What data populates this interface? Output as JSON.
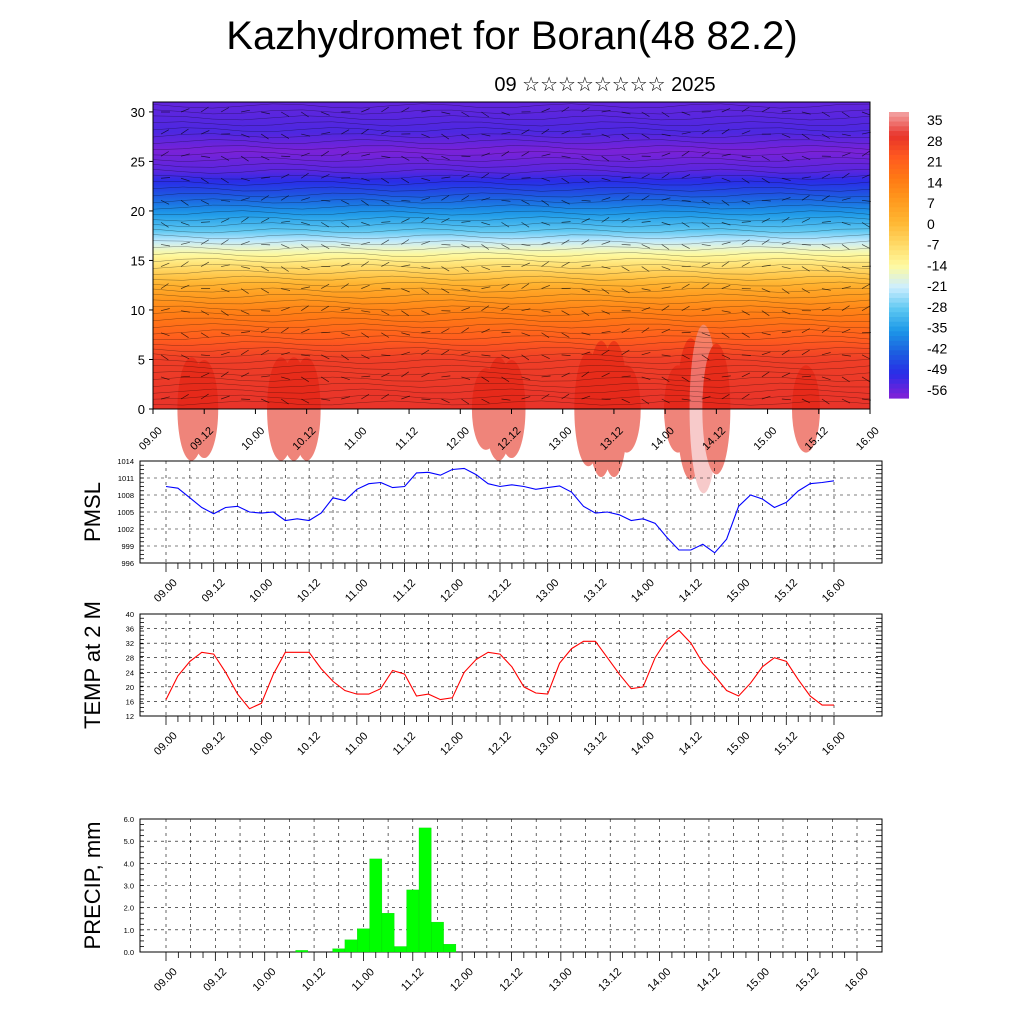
{
  "header": {
    "title": "Kazhydromet for Boran(48 82.2)",
    "subtitle": "09 ☆☆☆☆☆☆☆☆ 2025"
  },
  "time_ticks": [
    "09.00",
    "09.12",
    "10.00",
    "10.12",
    "11.00",
    "11.12",
    "12.00",
    "12.12",
    "13.00",
    "13.12",
    "14.00",
    "14.12",
    "15.00",
    "15.12",
    "16.00"
  ],
  "chart_data": [
    {
      "type": "heatmap",
      "name": "cross-section",
      "ylabel": "",
      "ylim": [
        0,
        31
      ],
      "y_ticks": [
        0,
        5,
        10,
        15,
        20,
        25,
        30
      ],
      "colorbar_labels": [
        "35",
        "28",
        "21",
        "14",
        "7",
        "0",
        "-7",
        "-14",
        "-21",
        "-28",
        "-35",
        "-42",
        "-49",
        "-56"
      ],
      "colorbar_colors": [
        "#f29b9b",
        "#e8332a",
        "#ff5a1f",
        "#ff7a14",
        "#ff9a1e",
        "#ffb733",
        "#ffd966",
        "#fffaa0",
        "#cdeeff",
        "#5ec8f2",
        "#1c98e8",
        "#1c5fe0",
        "#2a2ce8",
        "#7a22d8"
      ],
      "level_profile": [
        {
          "z": 0,
          "t": 28
        },
        {
          "z": 5,
          "t": 26
        },
        {
          "z": 8,
          "t": 18
        },
        {
          "z": 10,
          "t": 12
        },
        {
          "z": 12,
          "t": 4
        },
        {
          "z": 14,
          "t": -6
        },
        {
          "z": 16,
          "t": -16
        },
        {
          "z": 18,
          "t": -28
        },
        {
          "z": 20,
          "t": -36
        },
        {
          "z": 22,
          "t": -45
        },
        {
          "z": 24,
          "t": -53
        },
        {
          "z": 26,
          "t": -56
        },
        {
          "z": 28,
          "t": -52
        },
        {
          "z": 31,
          "t": -54
        }
      ]
    },
    {
      "type": "line",
      "name": "PMSL",
      "ylabel": "PMSL",
      "ylim": [
        996,
        1014
      ],
      "y_ticks": [
        996,
        999,
        1002,
        1005,
        1008,
        1011,
        1014
      ],
      "color": "#0000ff",
      "values": [
        1009.5,
        1009.2,
        1007.5,
        1005.8,
        1004.7,
        1005.8,
        1006,
        1005,
        1004.8,
        1005,
        1003.5,
        1003.8,
        1003.5,
        1004.8,
        1007.5,
        1007,
        1009,
        1010,
        1010.2,
        1009.3,
        1009.5,
        1011.9,
        1012,
        1011.5,
        1012.5,
        1012.7,
        1011.6,
        1010,
        1009.5,
        1009.8,
        1009.5,
        1009,
        1009.3,
        1009.6,
        1008.5,
        1006,
        1004.8,
        1005,
        1004.5,
        1003.5,
        1003.8,
        1003,
        1000.5,
        998.3,
        998.3,
        999.3,
        997.8,
        1000.2,
        1006,
        1008,
        1007.3,
        1005.8,
        1006.7,
        1008.7,
        1010,
        1010.2,
        1010.5
      ]
    },
    {
      "type": "line",
      "name": "TEMP at 2 M",
      "ylabel": "TEMP at 2 M",
      "ylim": [
        12,
        40
      ],
      "y_ticks": [
        12,
        16,
        20,
        24,
        28,
        32,
        36,
        40
      ],
      "color": "#ff0000",
      "values": [
        16.5,
        23,
        27,
        29.5,
        29,
        24,
        18,
        14,
        15.5,
        23.5,
        29.5,
        29.5,
        29.5,
        25,
        21.5,
        19,
        18,
        18,
        19.5,
        24.5,
        23.5,
        17.5,
        18,
        16.5,
        17,
        24,
        27.5,
        29.5,
        29,
        25.5,
        20,
        18.3,
        18,
        26.5,
        30.5,
        32.5,
        32.5,
        28,
        23.5,
        19.5,
        20,
        28,
        33,
        35.5,
        32,
        26.5,
        23,
        19,
        17.5,
        21,
        25.5,
        28,
        27,
        22,
        17.5,
        15,
        15
      ]
    },
    {
      "type": "bar",
      "name": "PRECIP",
      "ylabel": "PRECIP, mm",
      "ylim": [
        0,
        6
      ],
      "y_ticks": [
        0.0,
        1.0,
        2.0,
        3.0,
        4.0,
        5.0,
        6.0
      ],
      "y_tick_labels": [
        "0.0",
        "1.0",
        "2.0",
        "3.0",
        "4.0",
        "5.0",
        "6.0"
      ],
      "color": "#00ff00",
      "values": [
        0,
        0,
        0,
        0,
        0,
        0,
        0,
        0,
        0,
        0,
        0,
        0.07,
        0,
        0,
        0.15,
        0.55,
        1.05,
        4.2,
        1.75,
        0.25,
        2.8,
        5.6,
        1.35,
        0.35,
        0,
        0,
        0,
        0,
        0,
        0,
        0,
        0,
        0,
        0,
        0,
        0,
        0,
        0,
        0,
        0,
        0,
        0,
        0,
        0,
        0,
        0,
        0,
        0,
        0,
        0,
        0,
        0,
        0,
        0,
        0,
        0,
        0
      ]
    }
  ]
}
